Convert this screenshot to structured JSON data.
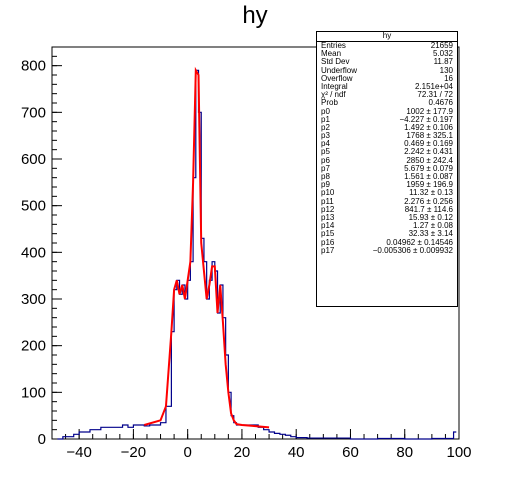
{
  "chart_data": {
    "type": "histogram",
    "title": "hy",
    "xlabel": "",
    "ylabel": "",
    "xlim": [
      -50,
      100
    ],
    "ylim": [
      0,
      840
    ],
    "x_ticks": [
      "−40",
      "−20",
      "0",
      "20",
      "40",
      "60",
      "80",
      "100"
    ],
    "x_tick_values": [
      -40,
      -20,
      0,
      20,
      40,
      60,
      80,
      100
    ],
    "y_ticks": [
      "0",
      "100",
      "200",
      "300",
      "400",
      "500",
      "600",
      "700",
      "800"
    ],
    "y_tick_values": [
      0,
      100,
      200,
      300,
      400,
      500,
      600,
      700,
      800
    ],
    "histogram_color": "#00008b",
    "fit_color": "#ff0000",
    "series": [
      {
        "kind": "histogram",
        "x": [
          -48,
          -46,
          -44,
          -42,
          -40,
          -38,
          -36,
          -34,
          -32,
          -30,
          -28,
          -26,
          -24,
          -22,
          -20,
          -18,
          -16,
          -14,
          -12,
          -10,
          -8,
          -6,
          -5,
          -4,
          -3,
          -2,
          -1,
          0,
          1,
          2,
          3,
          4,
          5,
          6,
          7,
          8,
          9,
          10,
          11,
          12,
          13,
          14,
          15,
          16,
          17,
          18,
          20,
          22,
          24,
          26,
          28,
          30,
          32,
          34,
          36,
          38,
          40,
          44,
          50,
          60,
          70,
          80,
          90,
          98
        ],
        "y": [
          0,
          5,
          5,
          10,
          15,
          15,
          20,
          20,
          25,
          25,
          25,
          25,
          30,
          25,
          30,
          30,
          28,
          30,
          30,
          35,
          70,
          230,
          320,
          340,
          310,
          330,
          300,
          340,
          380,
          560,
          790,
          700,
          430,
          380,
          300,
          340,
          380,
          360,
          270,
          330,
          260,
          180,
          100,
          50,
          35,
          30,
          30,
          30,
          30,
          25,
          20,
          15,
          12,
          10,
          8,
          5,
          3,
          2,
          2,
          0,
          1,
          0,
          1,
          15
        ],
        "x_step": 1
      },
      {
        "kind": "fit",
        "x": [
          -16,
          -10,
          -8,
          -6,
          -5,
          -4,
          -3,
          -2,
          -1,
          0,
          1,
          2,
          3,
          4,
          5,
          6,
          7,
          8,
          9,
          10,
          11,
          12,
          13,
          14,
          15,
          16,
          17,
          18,
          20,
          24,
          30
        ],
        "y": [
          30,
          40,
          70,
          230,
          320,
          340,
          310,
          330,
          300,
          340,
          380,
          550,
          790,
          780,
          420,
          360,
          300,
          330,
          370,
          370,
          270,
          330,
          250,
          160,
          100,
          55,
          40,
          32,
          30,
          28,
          25
        ]
      }
    ]
  },
  "stats": {
    "title": "hy",
    "rows": [
      {
        "label": "Entries",
        "value": "21659"
      },
      {
        "label": "Mean",
        "value": "5.032"
      },
      {
        "label": "Std Dev",
        "value": "11.87"
      },
      {
        "label": "Underflow",
        "value": "130"
      },
      {
        "label": "Overflow",
        "value": "16"
      },
      {
        "label": "Integral",
        "value": "2.151e+04"
      },
      {
        "label": "χ² / ndf",
        "value": "72.31 / 72"
      },
      {
        "label": "Prob",
        "value": "0.4676"
      },
      {
        "label": "p0",
        "value": "1002 ± 177.9"
      },
      {
        "label": "p1",
        "value": "−4.227 ± 0.197"
      },
      {
        "label": "p2",
        "value": "1.492 ± 0.106"
      },
      {
        "label": "p3",
        "value": "1768 ± 325.1"
      },
      {
        "label": "p4",
        "value": "0.469 ± 0.169"
      },
      {
        "label": "p5",
        "value": "2.242 ± 0.431"
      },
      {
        "label": "p6",
        "value": "2850 ± 242.4"
      },
      {
        "label": "p7",
        "value": "5.679 ± 0.079"
      },
      {
        "label": "p8",
        "value": "1.561 ± 0.087"
      },
      {
        "label": "p9",
        "value": "1959 ± 196.9"
      },
      {
        "label": "p10",
        "value": "11.32 ± 0.13"
      },
      {
        "label": "p11",
        "value": "2.276 ± 0.256"
      },
      {
        "label": "p12",
        "value": "841.7 ± 114.6"
      },
      {
        "label": "p13",
        "value": "15.93 ± 0.12"
      },
      {
        "label": "p14",
        "value": "1.27 ± 0.08"
      },
      {
        "label": "p15",
        "value": "32.33 ± 3.14"
      },
      {
        "label": "p16",
        "value": "0.04962 ± 0.14546"
      },
      {
        "label": "p17",
        "value": "−0.005306 ± 0.009932"
      }
    ]
  }
}
